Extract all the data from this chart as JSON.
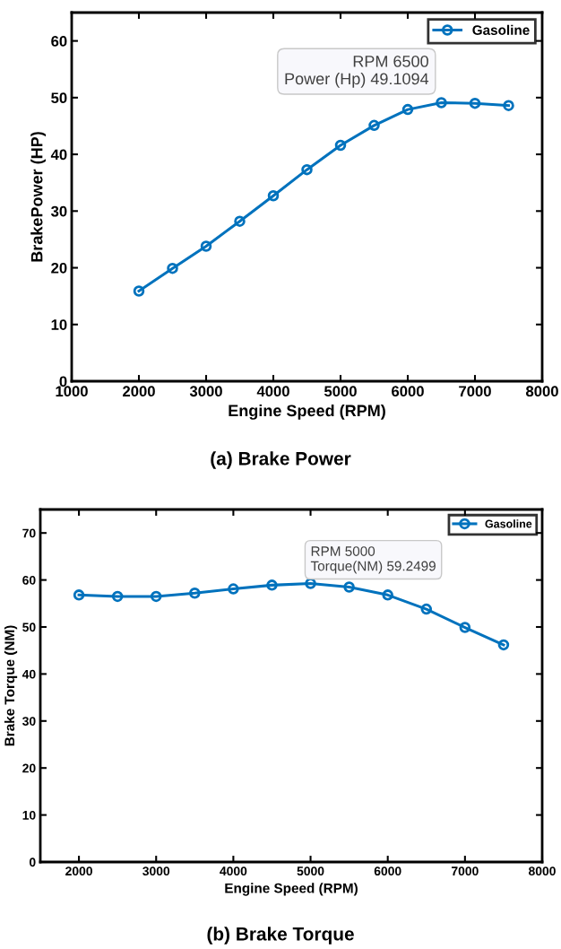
{
  "chart_data": [
    {
      "type": "line",
      "xlabel": "Engine Speed (RPM)",
      "ylabel": "BrakePower (HP)",
      "x": [
        2000,
        2500,
        3000,
        3500,
        4000,
        4500,
        5000,
        5500,
        6000,
        6500,
        7000,
        7500
      ],
      "series": [
        {
          "name": "Gasoline",
          "color": "#0072bd",
          "values": [
            15.9,
            19.9,
            23.8,
            28.2,
            32.7,
            37.3,
            41.6,
            45.1,
            47.9,
            49.1094,
            49.0,
            48.6
          ]
        }
      ],
      "xlim": [
        1000,
        8000
      ],
      "xticks": [
        1000,
        2000,
        3000,
        4000,
        5000,
        6000,
        7000,
        8000
      ],
      "ylim": [
        0,
        65
      ],
      "yticks": [
        0,
        10,
        20,
        30,
        40,
        50,
        60
      ],
      "marker": "circle",
      "line_style": "solid",
      "legend": "top right",
      "grid": false,
      "annotations": [
        {
          "text": "RPM 6500\nPower (Hp) 49.1094",
          "x": 6500,
          "y": 49.1094
        },
        "(a) Brake Power"
      ]
    },
    {
      "type": "line",
      "xlabel": "Engine Speed (RPM)",
      "ylabel": "Brake Torque (NM)",
      "x": [
        2000,
        2500,
        3000,
        3500,
        4000,
        4500,
        5000,
        5500,
        6000,
        6500,
        7000,
        7500
      ],
      "series": [
        {
          "name": "Gasoline",
          "color": "#0072bd",
          "values": [
            56.8,
            56.5,
            56.5,
            57.2,
            58.1,
            58.9,
            59.2499,
            58.5,
            56.8,
            53.8,
            49.9,
            46.2
          ]
        }
      ],
      "xlim": [
        1500,
        8000
      ],
      "xticks": [
        2000,
        3000,
        4000,
        5000,
        6000,
        7000,
        8000
      ],
      "ylim": [
        0,
        75
      ],
      "yticks": [
        0,
        10,
        20,
        30,
        40,
        50,
        60,
        70
      ],
      "marker": "circle",
      "line_style": "solid",
      "legend": "top right",
      "grid": false,
      "annotations": [
        {
          "text": "RPM 5000\nTorque(NM) 59.2499",
          "x": 5000,
          "y": 59.2499
        },
        "(b) Brake Torque"
      ]
    }
  ]
}
